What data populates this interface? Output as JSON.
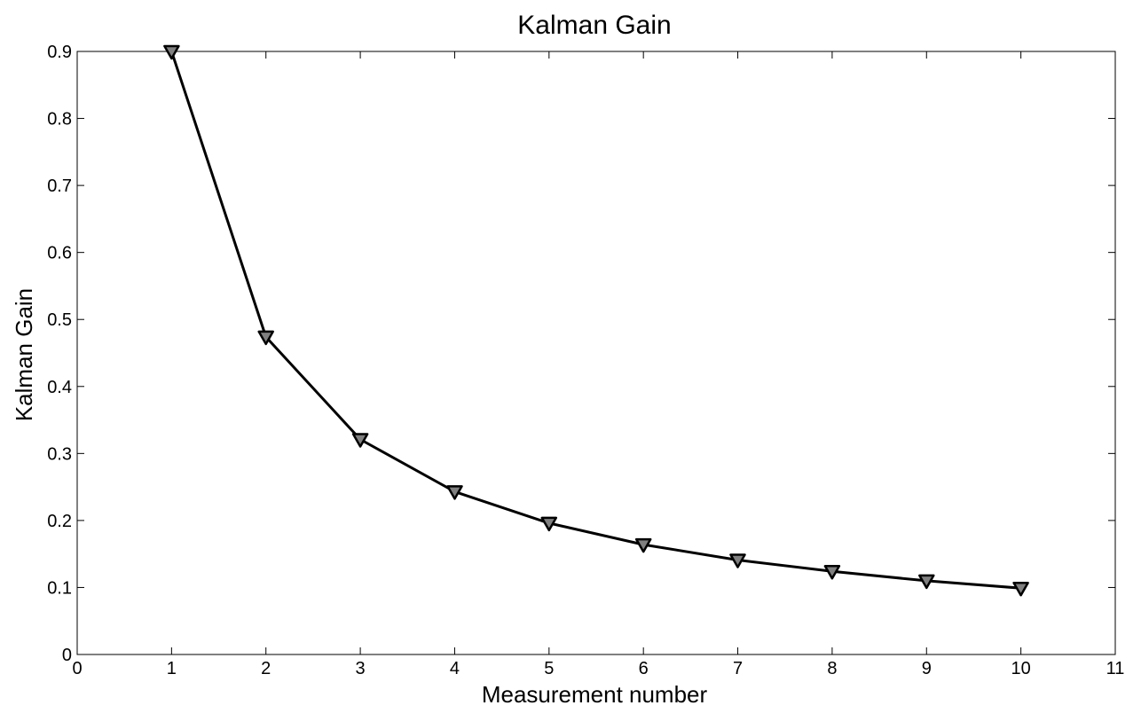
{
  "chart_data": {
    "type": "line",
    "title": "Kalman Gain",
    "xlabel": "Measurement number",
    "ylabel": "Kalman Gain",
    "xlim": [
      0,
      11
    ],
    "ylim": [
      0,
      0.9
    ],
    "x_ticks": [
      0,
      1,
      2,
      3,
      4,
      5,
      6,
      7,
      8,
      9,
      10,
      11
    ],
    "y_ticks": [
      0,
      0.1,
      0.2,
      0.3,
      0.4,
      0.5,
      0.6,
      0.7,
      0.8,
      0.9
    ],
    "x_tick_labels": [
      "0",
      "1",
      "2",
      "3",
      "4",
      "5",
      "6",
      "7",
      "8",
      "9",
      "10",
      "11"
    ],
    "y_tick_labels": [
      "0",
      "0.1",
      "0.2",
      "0.3",
      "0.4",
      "0.5",
      "0.6",
      "0.7",
      "0.8",
      "0.9"
    ],
    "grid": false,
    "marker": "triangle-down",
    "series": [
      {
        "x": [
          1,
          2,
          3,
          4,
          5,
          6,
          7,
          8,
          9,
          10
        ],
        "values": [
          0.9,
          0.474,
          0.321,
          0.243,
          0.196,
          0.164,
          0.141,
          0.124,
          0.11,
          0.099
        ],
        "line_color": "#000000",
        "marker_fill": "#808080"
      }
    ]
  }
}
